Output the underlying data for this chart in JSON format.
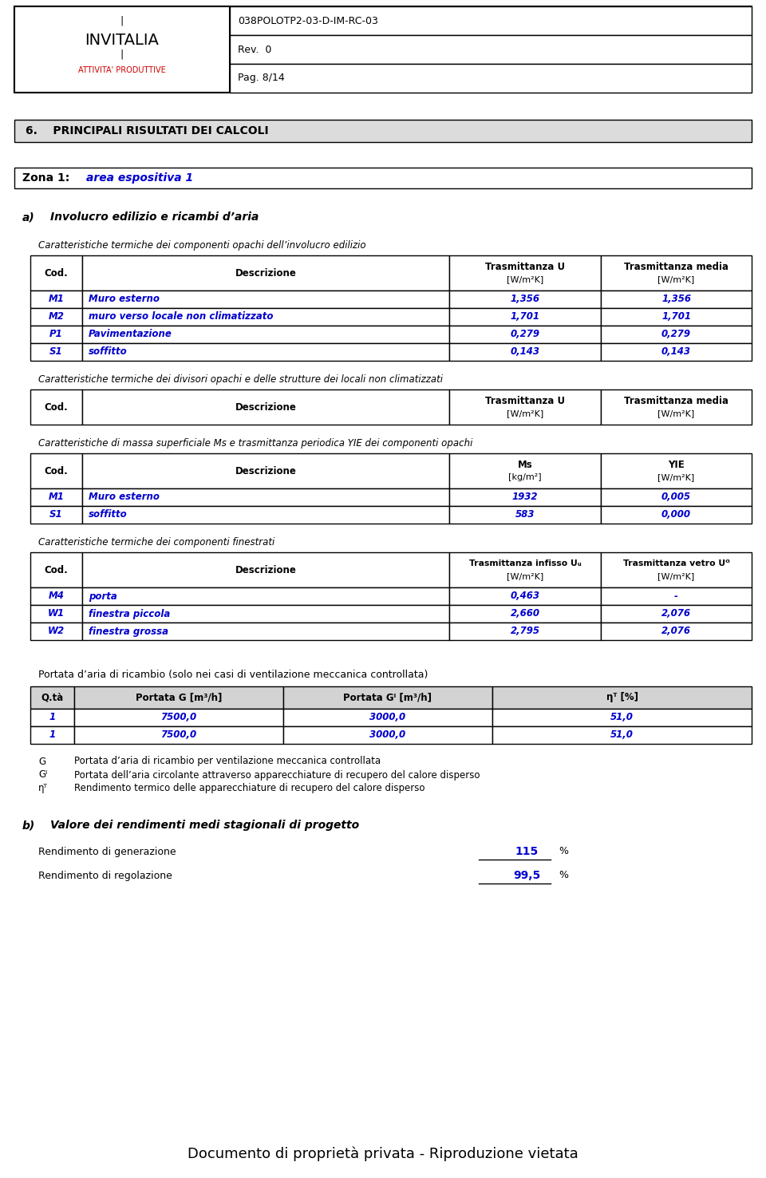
{
  "header_code": "038POLOTP2-03-D-IM-RC-03",
  "header_rev": "Rev.  0",
  "header_pag": "Pag. 8/14",
  "section_title": "6.    PRINCIPALI RISULTATI DEI CALCOLI",
  "zona_label": "Zona 1:",
  "zona_value": "area espositiva 1",
  "section_a_label": "a)",
  "section_a_title": "Involucro edilizio e ricambi d’aria",
  "table1_caption": "Caratteristiche termiche dei componenti opachi dell’involucro edilizio",
  "table1_rows": [
    [
      "M1",
      "Muro esterno",
      "1,356",
      "1,356"
    ],
    [
      "M2",
      "muro verso locale non climatizzato",
      "1,701",
      "1,701"
    ],
    [
      "P1",
      "Pavimentazione",
      "0,279",
      "0,279"
    ],
    [
      "S1",
      "soffitto",
      "0,143",
      "0,143"
    ]
  ],
  "table2_caption": "Caratteristiche termiche dei divisori opachi e delle strutture dei locali non climatizzati",
  "table3_caption": "Caratteristiche di massa superficiale Ms e trasmittanza periodica YIE dei componenti opachi",
  "table3_rows": [
    [
      "M1",
      "Muro esterno",
      "1932",
      "0,005"
    ],
    [
      "S1",
      "soffitto",
      "583",
      "0,000"
    ]
  ],
  "table4_caption": "Caratteristiche termiche dei componenti finestrati",
  "table4_rows": [
    [
      "M4",
      "porta",
      "0,463",
      "-"
    ],
    [
      "W1",
      "finestra piccola",
      "2,660",
      "2,076"
    ],
    [
      "W2",
      "finestra grossa",
      "2,795",
      "2,076"
    ]
  ],
  "portata_caption": "Portata d’aria di ricambio (solo nei casi di ventilazione meccanica controllata)",
  "portata_rows": [
    [
      "1",
      "7500,0",
      "3000,0",
      "51,0"
    ],
    [
      "1",
      "7500,0",
      "3000,0",
      "51,0"
    ]
  ],
  "portata_legend": [
    [
      "G",
      "Portata d’aria di ricambio per ventilazione meccanica controllata"
    ],
    [
      "Gᴵ",
      "Portata dell’aria circolante attraverso apparecchiature di recupero del calore disperso"
    ],
    [
      "ηᵀ",
      "Rendimento termico delle apparecchiature di recupero del calore disperso"
    ]
  ],
  "section_b_label": "b)",
  "section_b_title": "Valore dei rendimenti medi stagionali di progetto",
  "rendimento_rows": [
    [
      "Rendimento di generazione",
      "115",
      "%"
    ],
    [
      "Rendimento di regolazione",
      "99,5",
      "%"
    ]
  ],
  "footer": "Documento di proprietà privata - Riproduzione vietata",
  "blue": "#0000CD",
  "red": "#CC0000"
}
